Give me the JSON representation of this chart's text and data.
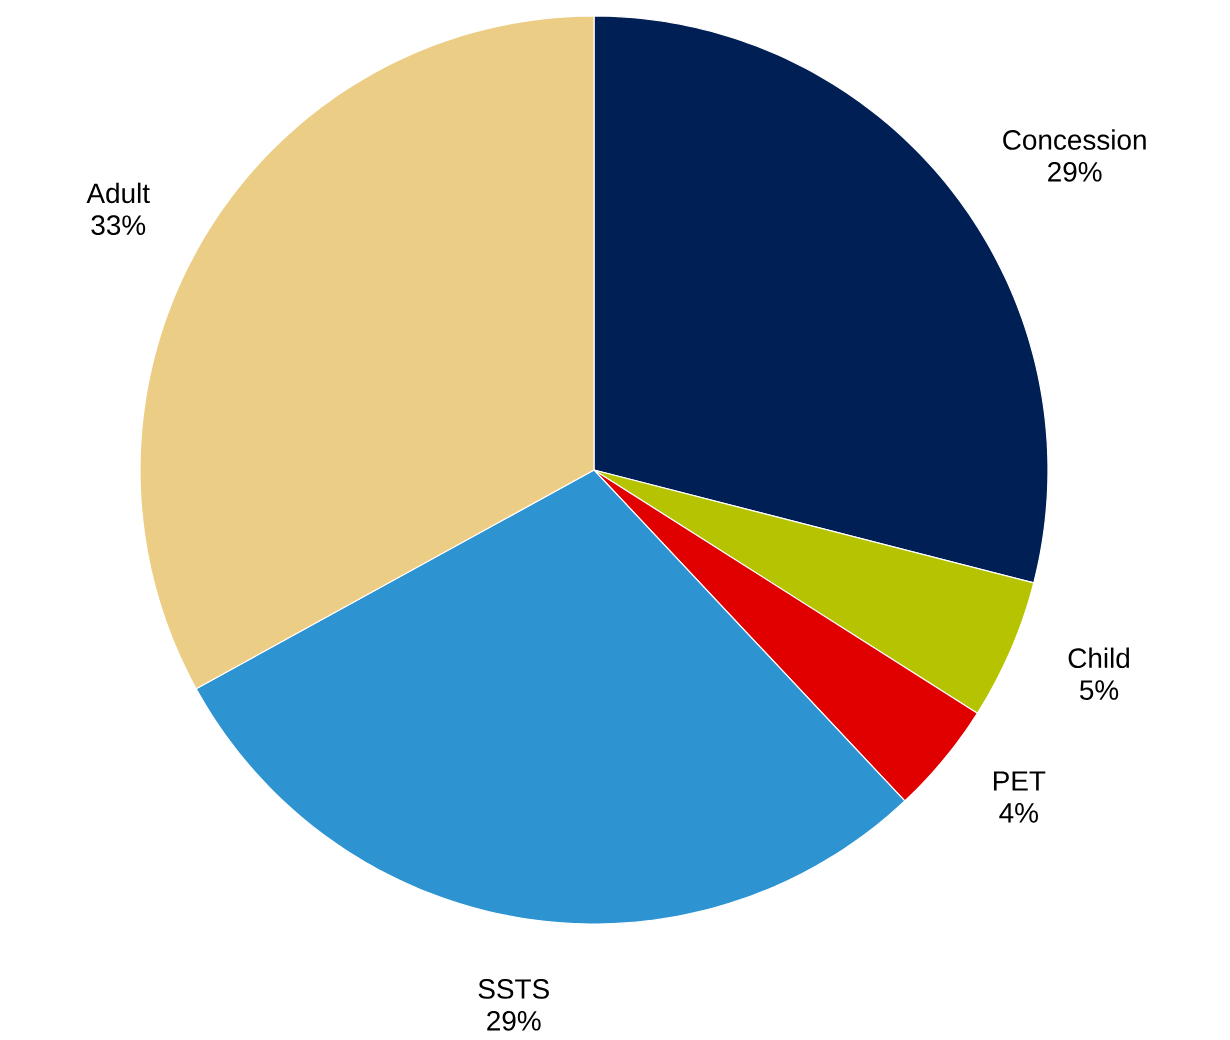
{
  "chart_data": {
    "type": "pie",
    "categories": [
      "Concession",
      "Child",
      "PET",
      "SSTS",
      "Adult"
    ],
    "values": [
      29,
      5,
      4,
      29,
      33
    ],
    "colors": [
      "#001f54",
      "#b5c300",
      "#e00000",
      "#2e93d1",
      "#eccd85"
    ],
    "value_labels": [
      "29%",
      "5%",
      "4%",
      "29%",
      "33%"
    ]
  }
}
